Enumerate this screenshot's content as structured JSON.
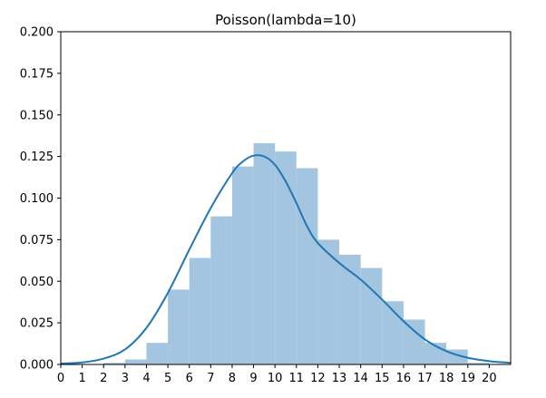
{
  "chart_data": {
    "type": "bar",
    "title": "Poisson(lambda=10)",
    "xlabel": "",
    "ylabel": "",
    "xlim": [
      0,
      21
    ],
    "ylim": [
      0,
      0.2
    ],
    "grid": false,
    "x_ticks": [
      "0",
      "1",
      "2",
      "3",
      "4",
      "5",
      "6",
      "7",
      "8",
      "9",
      "10",
      "11",
      "12",
      "13",
      "14",
      "15",
      "16",
      "17",
      "18",
      "19",
      "20"
    ],
    "y_ticks": [
      "0.000",
      "0.025",
      "0.050",
      "0.075",
      "0.100",
      "0.125",
      "0.150",
      "0.175",
      "0.200"
    ],
    "bins": [
      {
        "x0": 2,
        "x1": 3,
        "value": 0.001
      },
      {
        "x0": 3,
        "x1": 4,
        "value": 0.003
      },
      {
        "x0": 4,
        "x1": 5,
        "value": 0.013
      },
      {
        "x0": 5,
        "x1": 6,
        "value": 0.045
      },
      {
        "x0": 6,
        "x1": 7,
        "value": 0.064
      },
      {
        "x0": 7,
        "x1": 8,
        "value": 0.089
      },
      {
        "x0": 8,
        "x1": 9,
        "value": 0.119
      },
      {
        "x0": 9,
        "x1": 10,
        "value": 0.133
      },
      {
        "x0": 10,
        "x1": 11,
        "value": 0.128
      },
      {
        "x0": 11,
        "x1": 12,
        "value": 0.118
      },
      {
        "x0": 12,
        "x1": 13,
        "value": 0.075
      },
      {
        "x0": 13,
        "x1": 14,
        "value": 0.066
      },
      {
        "x0": 14,
        "x1": 15,
        "value": 0.058
      },
      {
        "x0": 15,
        "x1": 16,
        "value": 0.038
      },
      {
        "x0": 16,
        "x1": 17,
        "value": 0.027
      },
      {
        "x0": 17,
        "x1": 18,
        "value": 0.013
      },
      {
        "x0": 18,
        "x1": 19,
        "value": 0.009
      },
      {
        "x0": 19,
        "x1": 20,
        "value": 0.001
      }
    ],
    "kde": {
      "x": [
        0,
        1,
        2,
        3,
        4,
        5,
        6,
        7,
        8,
        8.5,
        9,
        9.5,
        10,
        10.5,
        11,
        11.5,
        12,
        13,
        14,
        15,
        16,
        17,
        18,
        19,
        20,
        21
      ],
      "y": [
        0.0005,
        0.0012,
        0.0035,
        0.009,
        0.022,
        0.043,
        0.069,
        0.094,
        0.115,
        0.122,
        0.1255,
        0.125,
        0.12,
        0.11,
        0.097,
        0.083,
        0.073,
        0.061,
        0.051,
        0.039,
        0.026,
        0.015,
        0.008,
        0.004,
        0.002,
        0.001
      ]
    },
    "colors": {
      "bar": "#a4c5df",
      "line": "#1f77b4"
    }
  }
}
